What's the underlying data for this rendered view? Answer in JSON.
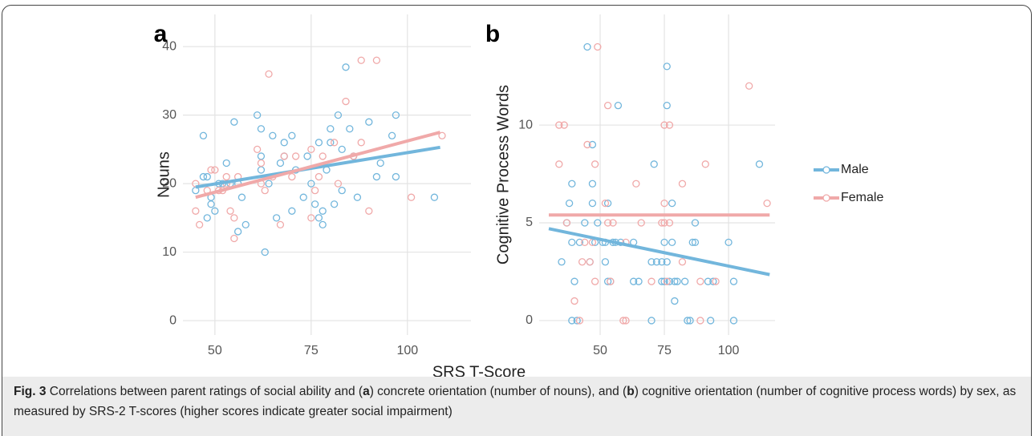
{
  "chart_data": [
    {
      "type": "scatter",
      "panel_label": "a",
      "ylabel": "Nouns",
      "xlim": [
        41.7,
        116.5
      ],
      "ylim": [
        -2.1,
        44.7
      ],
      "xticks": [
        50,
        75,
        100
      ],
      "yticks": [
        0,
        10,
        20,
        30,
        40
      ],
      "grid": true,
      "series": [
        {
          "color": "#72b6dc",
          "x": [
            45,
            47,
            47,
            48,
            48,
            49,
            49,
            50,
            51,
            52,
            53,
            54,
            55,
            56,
            56,
            57,
            58,
            61,
            62,
            62,
            62,
            63,
            64,
            65,
            66,
            67,
            68,
            68,
            70,
            70,
            71,
            73,
            74,
            75,
            76,
            77,
            77,
            78,
            78,
            79,
            80,
            80,
            81,
            82,
            83,
            83,
            84,
            85,
            86,
            87,
            90,
            92,
            93,
            96,
            97,
            97,
            107
          ],
          "values": [
            19,
            21,
            27,
            21,
            15,
            17,
            18,
            16,
            20,
            20,
            23,
            20,
            29,
            20,
            13,
            18,
            14,
            30,
            24,
            28,
            22,
            10,
            20,
            27,
            15,
            23,
            26,
            24,
            27,
            16,
            22,
            18,
            24,
            20,
            17,
            15,
            26,
            16,
            14,
            22,
            28,
            26,
            17,
            30,
            25,
            19,
            37,
            28,
            24,
            18,
            29,
            21,
            23,
            27,
            30,
            21,
            18
          ],
          "fit_x": [
            45,
            108.5
          ],
          "fit_y": [
            19.5,
            25.3
          ]
        },
        {
          "color": "#f0a9a9",
          "x": [
            45,
            45,
            46,
            48,
            49,
            50,
            51,
            52,
            53,
            53,
            54,
            55,
            55,
            56,
            61,
            62,
            62,
            63,
            64,
            65,
            67,
            68,
            70,
            71,
            75,
            75,
            76,
            77,
            78,
            81,
            82,
            84,
            86,
            88,
            88,
            90,
            92,
            101,
            109
          ],
          "values": [
            16,
            20,
            14,
            19,
            22,
            22,
            19,
            19,
            20,
            21,
            16,
            12,
            15,
            21,
            25,
            23,
            20,
            19,
            36,
            21,
            14,
            24,
            21,
            24,
            25,
            15,
            19,
            21,
            24,
            26,
            20,
            32,
            24,
            38,
            26,
            16,
            38,
            18,
            27
          ],
          "fit_x": [
            45,
            108.5
          ],
          "fit_y": [
            18,
            27.5
          ]
        }
      ]
    },
    {
      "type": "scatter",
      "panel_label": "b",
      "ylabel": "Cognitive Process Words",
      "xlim": [
        26.25,
        118.1
      ],
      "ylim": [
        -0.74,
        15.66
      ],
      "xticks": [
        50,
        75,
        100
      ],
      "yticks": [
        0,
        5,
        10
      ],
      "grid": true,
      "series": [
        {
          "name": "Male",
          "color": "#72b6dc",
          "x": [
            35,
            37,
            38,
            39,
            39,
            39,
            40,
            41,
            42,
            44,
            45,
            46,
            47,
            47,
            47,
            48,
            49,
            51,
            52,
            52,
            53,
            53,
            54,
            55,
            56,
            57,
            58,
            63,
            63,
            65,
            70,
            70,
            71,
            72,
            74,
            74,
            75,
            75,
            76,
            76,
            76,
            77,
            78,
            78,
            79,
            79,
            80,
            83,
            84,
            85,
            86,
            87,
            87,
            92,
            93,
            94,
            100,
            102,
            102,
            112
          ],
          "values": [
            3,
            5,
            6,
            7,
            4,
            0,
            2,
            0,
            4,
            5,
            14,
            3,
            7,
            9,
            6,
            4,
            5,
            4,
            3,
            4,
            2,
            6,
            2,
            4,
            4,
            11,
            4,
            4,
            2,
            2,
            3,
            0,
            8,
            3,
            3,
            2,
            2,
            4,
            13,
            11,
            3,
            2,
            6,
            4,
            2,
            1,
            2,
            2,
            0,
            0,
            4,
            4,
            5,
            2,
            0,
            2,
            4,
            2,
            0,
            8
          ],
          "fit_x": [
            30,
            116
          ],
          "fit_y": [
            4.7,
            2.35
          ]
        },
        {
          "name": "Female",
          "color": "#f0a9a9",
          "x": [
            34,
            34,
            36,
            37,
            40,
            42,
            43,
            44,
            45,
            46,
            47,
            48,
            48,
            49,
            52,
            53,
            53,
            54,
            55,
            59,
            60,
            60,
            64,
            66,
            70,
            74,
            75,
            75,
            75,
            76,
            77,
            77,
            82,
            82,
            89,
            89,
            91,
            95,
            108,
            115
          ],
          "values": [
            10,
            8,
            10,
            5,
            1,
            0,
            3,
            4,
            9,
            3,
            4,
            2,
            8,
            14,
            6,
            11,
            5,
            2,
            5,
            0,
            0,
            4,
            7,
            5,
            2,
            5,
            10,
            6,
            5,
            2,
            10,
            5,
            7,
            3,
            2,
            0,
            8,
            2,
            12,
            6
          ],
          "fit_x": [
            30,
            116
          ],
          "fit_y": [
            5.4,
            5.4
          ]
        }
      ]
    }
  ],
  "x_axis_label": "SRS T-Score",
  "caption": {
    "label": "Fig. 3",
    "parts": [
      "Correlations between parent ratings of social ability and (",
      "a",
      ") concrete orientation (number of nouns), and (",
      "b",
      ") cognitive orientation (number of cognitive process words) by sex, as measured by SRS-2 T-scores (higher scores indicate greater social impairment)"
    ]
  }
}
